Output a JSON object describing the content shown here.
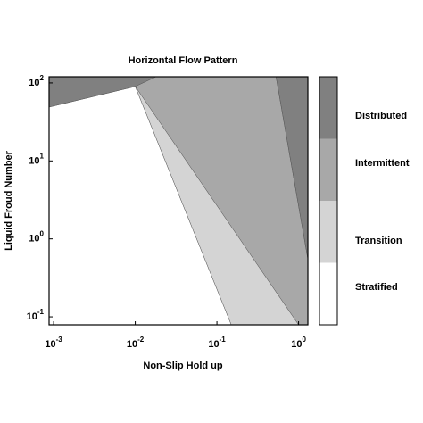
{
  "chart_data": {
    "type": "region-map",
    "title": "Horizontal Flow Pattern",
    "x_label": "Non-Slip Hold up",
    "y_label": "Liquid Froud Number",
    "x_log": true,
    "y_log": true,
    "xlim": [
      0.00088,
      1.3
    ],
    "ylim": [
      0.079,
      120
    ],
    "xticks": [
      {
        "value": 0.001,
        "label": "10",
        "sup": "-3"
      },
      {
        "value": 0.01,
        "label": "10",
        "sup": "-2"
      },
      {
        "value": 0.1,
        "label": "10",
        "sup": "-1"
      },
      {
        "value": 1,
        "label": "10",
        "sup": "0"
      }
    ],
    "yticks": [
      {
        "value": 0.1,
        "label": "10",
        "sup": "-1"
      },
      {
        "value": 1,
        "label": "10",
        "sup": "0"
      },
      {
        "value": 10,
        "label": "10",
        "sup": "1"
      },
      {
        "value": 100,
        "label": "10",
        "sup": "2"
      }
    ],
    "legend": [
      {
        "name": "Distributed",
        "color": "#808080"
      },
      {
        "name": "Intermittent",
        "color": "#a8a8a8"
      },
      {
        "name": "Transition",
        "color": "#d4d4d4"
      },
      {
        "name": "Stratified",
        "color": "#ffffff"
      }
    ],
    "regions": [
      {
        "legend": 3,
        "points": [
          [
            0.00088,
            0.079
          ],
          [
            0.00088,
            49
          ],
          [
            0.01,
            90
          ],
          [
            0.15,
            0.079
          ]
        ]
      },
      {
        "legend": 0,
        "points": [
          [
            0.00088,
            49
          ],
          [
            0.01,
            90
          ],
          [
            0.018,
            120
          ],
          [
            0.00088,
            120
          ]
        ]
      },
      {
        "legend": 1,
        "points": [
          [
            0.01,
            90
          ],
          [
            0.018,
            120
          ],
          [
            0.53,
            120
          ],
          [
            1.3,
            0.55
          ],
          [
            1.3,
            0.079
          ],
          [
            1.0,
            0.079
          ]
        ]
      },
      {
        "legend": 2,
        "points": [
          [
            0.01,
            90
          ],
          [
            1.0,
            0.079
          ],
          [
            0.15,
            0.079
          ]
        ]
      },
      {
        "legend": 0,
        "points": [
          [
            0.53,
            120
          ],
          [
            1.3,
            120
          ],
          [
            1.3,
            0.55
          ]
        ]
      }
    ]
  }
}
